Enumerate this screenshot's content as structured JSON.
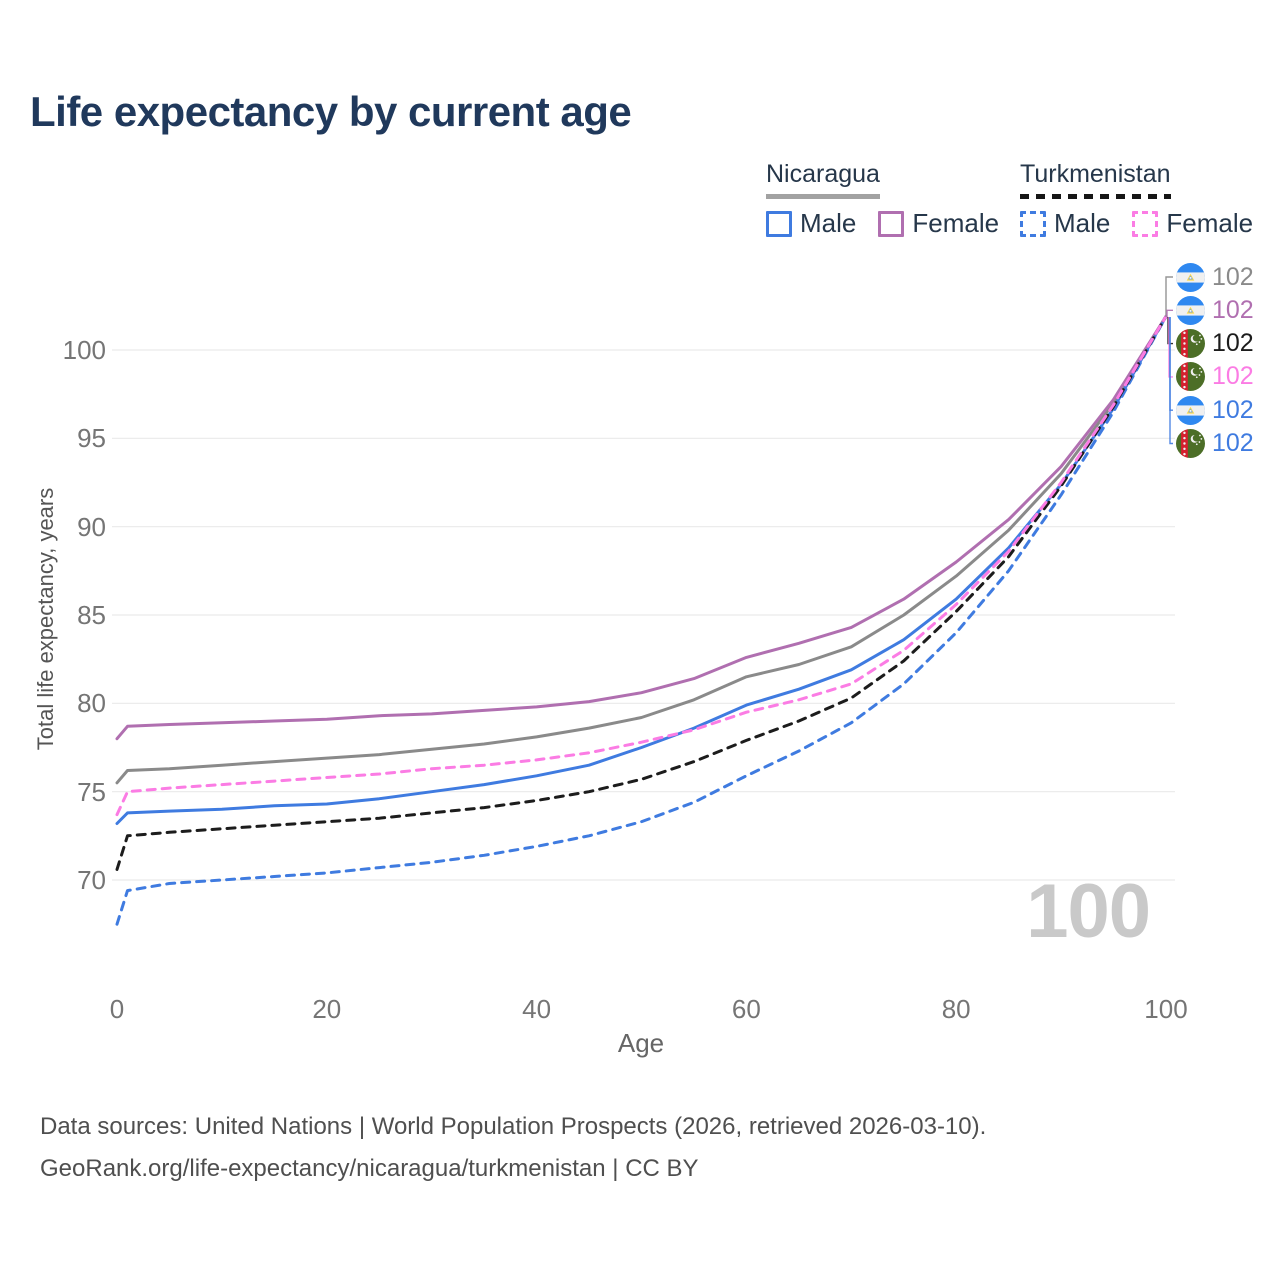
{
  "page": {
    "title": "Life expectancy by current age"
  },
  "legend": {
    "groups": [
      {
        "label": "Nicaragua",
        "line_style": "solid",
        "items": [
          {
            "label": "Male",
            "color": "#3f7be0",
            "dashed": false
          },
          {
            "label": "Female",
            "color": "#b06fb0",
            "dashed": false
          }
        ]
      },
      {
        "label": "Turkmenistan",
        "line_style": "dashed",
        "items": [
          {
            "label": "Male",
            "color": "#3f7be0",
            "dashed": true
          },
          {
            "label": "Female",
            "color": "#fb7ce4",
            "dashed": true
          }
        ]
      }
    ]
  },
  "chart_data": {
    "type": "line",
    "title": "Life expectancy by current age",
    "xlabel": "Age",
    "ylabel": "Total life expectancy, years",
    "xlim": [
      0,
      100
    ],
    "ylim": [
      66,
      103
    ],
    "xticks": [
      0,
      20,
      40,
      60,
      80,
      100
    ],
    "yticks": [
      70,
      75,
      80,
      85,
      90,
      95,
      100
    ],
    "grid": "horizontal",
    "legend_position": "top-right",
    "hover_age_label": "100",
    "x": [
      0,
      1,
      5,
      10,
      15,
      20,
      25,
      30,
      35,
      40,
      45,
      50,
      55,
      60,
      65,
      70,
      75,
      80,
      85,
      90,
      95,
      100
    ],
    "series": [
      {
        "name": "Nicaragua Both sexes",
        "country": "Nicaragua",
        "sex": "Both",
        "color": "#8a8a8a",
        "dash": "solid",
        "values": [
          75.5,
          76.2,
          76.3,
          76.5,
          76.7,
          76.9,
          77.1,
          77.4,
          77.7,
          78.1,
          78.6,
          79.2,
          80.2,
          81.5,
          82.2,
          83.2,
          85.0,
          87.2,
          89.8,
          93.0,
          97.0,
          101.9
        ]
      },
      {
        "name": "Nicaragua Male",
        "country": "Nicaragua",
        "sex": "Male",
        "color": "#3f7be0",
        "dash": "solid",
        "values": [
          73.2,
          73.8,
          73.9,
          74.0,
          74.2,
          74.3,
          74.6,
          75.0,
          75.4,
          75.9,
          76.5,
          77.5,
          78.6,
          79.9,
          80.8,
          81.9,
          83.6,
          85.9,
          88.8,
          92.4,
          96.7,
          101.9
        ]
      },
      {
        "name": "Nicaragua Female",
        "country": "Nicaragua",
        "sex": "Female",
        "color": "#b06fb0",
        "dash": "solid",
        "values": [
          78.0,
          78.7,
          78.8,
          78.9,
          79.0,
          79.1,
          79.3,
          79.4,
          79.6,
          79.8,
          80.1,
          80.6,
          81.4,
          82.6,
          83.4,
          84.3,
          85.9,
          88.0,
          90.4,
          93.4,
          97.2,
          101.9
        ]
      },
      {
        "name": "Turkmenistan Male",
        "country": "Turkmenistan",
        "sex": "Male",
        "color": "#3f7be0",
        "dash": "dashed",
        "values": [
          67.5,
          69.4,
          69.8,
          70.0,
          70.2,
          70.4,
          70.7,
          71.0,
          71.4,
          71.9,
          72.5,
          73.3,
          74.4,
          75.9,
          77.3,
          78.9,
          81.1,
          84.0,
          87.5,
          91.8,
          96.5,
          101.9
        ]
      },
      {
        "name": "Turkmenistan Both sexes",
        "country": "Turkmenistan",
        "sex": "Both",
        "color": "#1c1c1c",
        "dash": "dashed",
        "values": [
          70.6,
          72.5,
          72.7,
          72.9,
          73.1,
          73.3,
          73.5,
          73.8,
          74.1,
          74.5,
          75.0,
          75.7,
          76.7,
          77.9,
          79.0,
          80.3,
          82.4,
          85.2,
          88.3,
          92.3,
          96.8,
          101.9
        ]
      },
      {
        "name": "Turkmenistan Female",
        "country": "Turkmenistan",
        "sex": "Female",
        "color": "#fb7ce4",
        "dash": "dashed",
        "values": [
          73.7,
          75.0,
          75.2,
          75.4,
          75.6,
          75.8,
          76.0,
          76.3,
          76.5,
          76.8,
          77.2,
          77.8,
          78.5,
          79.5,
          80.2,
          81.1,
          83.0,
          85.6,
          88.6,
          92.5,
          96.9,
          101.9
        ]
      }
    ],
    "end_labels": [
      {
        "value": "102",
        "color": "#8a8a8a",
        "flag": "nicaragua",
        "series": "Nicaragua Both sexes"
      },
      {
        "value": "102",
        "color": "#b06fb0",
        "flag": "nicaragua",
        "series": "Nicaragua Female"
      },
      {
        "value": "102",
        "color": "#1c1c1c",
        "flag": "turkmenistan",
        "series": "Turkmenistan Both sexes"
      },
      {
        "value": "102",
        "color": "#fb7ce4",
        "flag": "turkmenistan",
        "series": "Turkmenistan Female"
      },
      {
        "value": "102",
        "color": "#3f7be0",
        "flag": "nicaragua",
        "series": "Nicaragua Male"
      },
      {
        "value": "102",
        "color": "#3f7be0",
        "flag": "turkmenistan",
        "series": "Turkmenistan Male"
      }
    ]
  },
  "footer": {
    "line1": "Data sources: United Nations | World Population Prospects (2026, retrieved 2026-03-10).",
    "line2": "GeoRank.org/life-expectancy/nicaragua/turkmenistan | CC BY"
  }
}
